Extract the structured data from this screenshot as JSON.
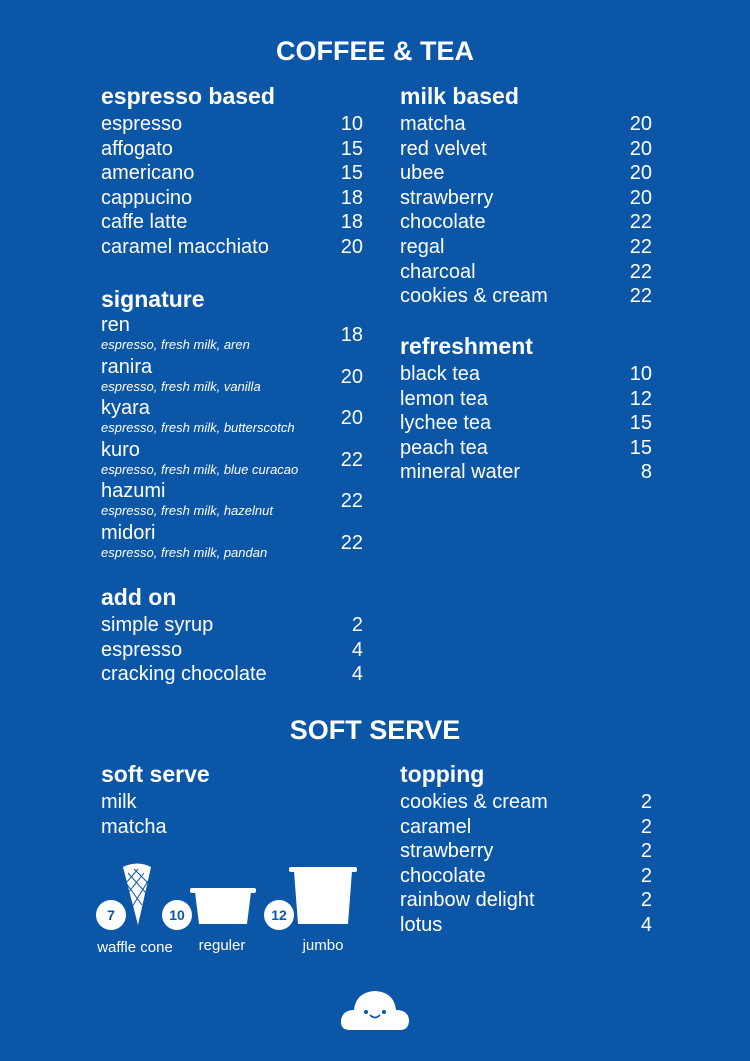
{
  "coffee_title": "COFFEE & TEA",
  "espresso": {
    "title": "espresso based",
    "items": [
      [
        "espresso",
        "10"
      ],
      [
        "affogato",
        "15"
      ],
      [
        "americano",
        "15"
      ],
      [
        "cappucino",
        "18"
      ],
      [
        "caffe latte",
        "18"
      ],
      [
        "caramel macchiato",
        "20"
      ]
    ]
  },
  "signature": {
    "title": "signature",
    "items": [
      [
        "ren",
        "espresso, fresh milk, aren",
        "18"
      ],
      [
        "ranira",
        "espresso, fresh milk, vanilla",
        "20"
      ],
      [
        "kyara",
        "espresso, fresh milk, butterscotch",
        "20"
      ],
      [
        "kuro",
        "espresso, fresh milk, blue curacao",
        "22"
      ],
      [
        "hazumi",
        "espresso, fresh milk, hazelnut",
        "22"
      ],
      [
        "midori",
        "espresso, fresh milk, pandan",
        "22"
      ]
    ]
  },
  "addon": {
    "title": "add on",
    "items": [
      [
        "simple syrup",
        "2"
      ],
      [
        "espresso",
        "4"
      ],
      [
        "cracking chocolate",
        "4"
      ]
    ]
  },
  "milk": {
    "title": "milk based",
    "items": [
      [
        "matcha",
        "20"
      ],
      [
        "red velvet",
        "20"
      ],
      [
        "ubee",
        "20"
      ],
      [
        "strawberry",
        "20"
      ],
      [
        "chocolate",
        "22"
      ],
      [
        "regal",
        "22"
      ],
      [
        "charcoal",
        "22"
      ],
      [
        "cookies & cream",
        "22"
      ]
    ]
  },
  "refresh": {
    "title": "refreshment",
    "items": [
      [
        "black tea",
        "10"
      ],
      [
        "lemon tea",
        "12"
      ],
      [
        "lychee tea",
        "15"
      ],
      [
        "peach tea",
        "15"
      ],
      [
        "mineral water",
        "8"
      ]
    ]
  },
  "softserve_title": "SOFT SERVE",
  "softserve": {
    "title": "soft serve",
    "flavors": [
      "milk",
      "matcha"
    ],
    "sizes": [
      {
        "price": "7",
        "label": "waffle cone"
      },
      {
        "price": "10",
        "label": "reguler"
      },
      {
        "price": "12",
        "label": "jumbo"
      }
    ]
  },
  "topping": {
    "title": "topping",
    "items": [
      [
        "cookies & cream",
        "2"
      ],
      [
        "caramel",
        "2"
      ],
      [
        "strawberry",
        "2"
      ],
      [
        "chocolate",
        "2"
      ],
      [
        "rainbow delight",
        "2"
      ],
      [
        "lotus",
        "4"
      ]
    ]
  },
  "colors": {
    "background": "#0b56a7",
    "text": "#ffffff"
  }
}
